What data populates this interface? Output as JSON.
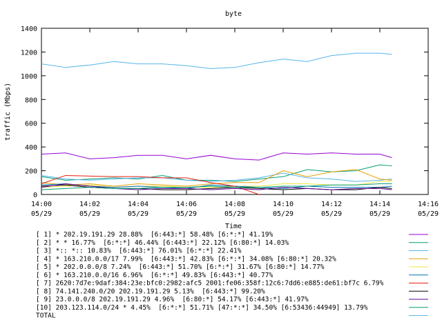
{
  "chart_data": {
    "type": "line",
    "title": "byte",
    "xlabel": "Time",
    "ylabel": "traffic (Mbps)",
    "x": [
      0,
      1,
      2,
      3,
      4,
      5,
      6,
      7,
      8,
      9,
      10,
      11,
      12,
      13,
      14,
      14.5
    ],
    "xlim": [
      0,
      16
    ],
    "ylim": [
      0,
      1400
    ],
    "xticks": [
      {
        "value": 0,
        "label": "14:00\n05/29"
      },
      {
        "value": 2,
        "label": "14:02\n05/29"
      },
      {
        "value": 4,
        "label": "14:04\n05/29"
      },
      {
        "value": 6,
        "label": "14:06\n05/29"
      },
      {
        "value": 8,
        "label": "14:08\n05/29"
      },
      {
        "value": 10,
        "label": "14:10\n05/29"
      },
      {
        "value": 12,
        "label": "14:12\n05/29"
      },
      {
        "value": 14,
        "label": "14:14\n05/29"
      },
      {
        "value": 16,
        "label": "14:16\n05/29"
      }
    ],
    "yticks": [
      0,
      200,
      400,
      600,
      800,
      1000,
      1200,
      1400
    ],
    "series": [
      {
        "name": "[ 1] * 202.19.191.29 28.88%  [6:443:*] 58.48% [6:*:*] 41.19%",
        "color": "#9400d3",
        "values": [
          340,
          350,
          300,
          310,
          330,
          330,
          300,
          330,
          300,
          290,
          350,
          340,
          350,
          340,
          340,
          310
        ]
      },
      {
        "name": "[ 2] * * 16.77%  [6:*:*] 46.44% [6:443:*] 22.12% [6:80:*] 14.03%",
        "color": "#009e73",
        "values": [
          150,
          120,
          130,
          140,
          130,
          160,
          120,
          120,
          110,
          130,
          150,
          210,
          190,
          200,
          250,
          240
        ]
      },
      {
        "name": "[ 3] *:: *:: 10.83%  [6:443:*] 76.01% [6:*:*] 22.41%",
        "color": "#56b4e9",
        "values": [
          160,
          130,
          120,
          130,
          140,
          140,
          120,
          110,
          120,
          140,
          180,
          140,
          130,
          110,
          120,
          130
        ]
      },
      {
        "name": "[ 4] * 163.210.0.0/17 7.99%  [6:443:*] 42.83% [6:*:*] 34.08% [6:80:*] 20.32%",
        "color": "#e69f00",
        "values": [
          100,
          80,
          90,
          70,
          90,
          80,
          70,
          90,
          100,
          100,
          200,
          150,
          190,
          210,
          130,
          120
        ]
      },
      {
        "name": "[ 5] * 202.0.0.0/8 7.24%  [6:443:*] 51.70% [6:*:*] 31.67% [6:80:*] 14.77%",
        "color": "#f0e442",
        "values": [
          60,
          70,
          80,
          60,
          70,
          70,
          60,
          60,
          70,
          70,
          90,
          90,
          80,
          80,
          110,
          110
        ]
      },
      {
        "name": "[ 6] * 163.210.0.0/16 6.96%  [6:*:*] 49.83% [6:443:*] 40.77%",
        "color": "#0072b2",
        "values": [
          80,
          90,
          70,
          60,
          70,
          60,
          50,
          80,
          70,
          60,
          50,
          70,
          60,
          60,
          60,
          70
        ]
      },
      {
        "name": "[ 7] 2620:7d7e:9daf:384:23e:bfc0:2982:afc5 2001:fe06:358f:12c6:7dd6:e885:de61:bf7c 6.79%",
        "color": "#e51e10",
        "values": [
          90,
          160,
          155,
          150,
          150,
          140,
          140,
          100,
          70,
          0,
          null,
          null,
          null,
          null,
          null,
          null
        ]
      },
      {
        "name": "[ 8] 74.141.240.0/20 202.19.191.29 5.13%  [6:443:*] 99.20%",
        "color": "#000000",
        "values": [
          70,
          80,
          60,
          50,
          50,
          40,
          40,
          50,
          60,
          50,
          40,
          50,
          40,
          40,
          60,
          50
        ]
      },
      {
        "name": "[ 9] 23.0.0.0/8 202.19.191.29 4.96%  [6:80:*] 54.17% [6:443:*] 41.97%",
        "color": "#5a0090",
        "values": [
          60,
          90,
          70,
          50,
          40,
          50,
          50,
          40,
          50,
          40,
          60,
          50,
          40,
          50,
          50,
          40
        ]
      },
      {
        "name": "[10] 203.123.114.0/24 * 4.45%  [6:*:*] 51.71% [47:*:*] 34.50% [6:53436:44949] 13.79%",
        "color": "#009e73",
        "values": [
          40,
          50,
          60,
          50,
          50,
          60,
          60,
          70,
          60,
          60,
          70,
          70,
          80,
          80,
          90,
          90
        ]
      },
      {
        "name": "TOTAL",
        "color": "#56b4e9",
        "values": [
          1100,
          1070,
          1090,
          1120,
          1100,
          1100,
          1085,
          1060,
          1070,
          1110,
          1140,
          1120,
          1170,
          1190,
          1190,
          1180
        ]
      }
    ]
  }
}
